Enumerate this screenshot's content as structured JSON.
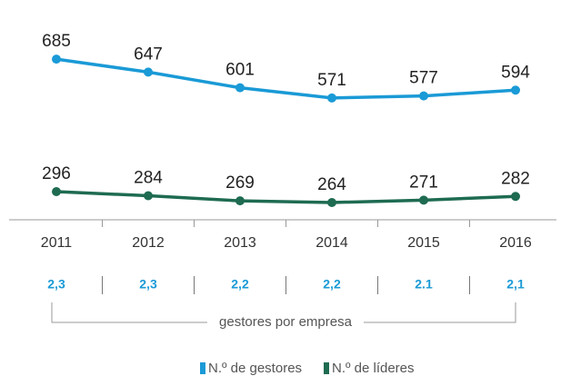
{
  "chart_data": {
    "type": "line",
    "categories": [
      "2011",
      "2012",
      "2013",
      "2014",
      "2015",
      "2016"
    ],
    "series": [
      {
        "name": "N.º de gestores",
        "color": "#1a9ad6",
        "values": [
          685,
          647,
          601,
          571,
          577,
          594
        ]
      },
      {
        "name": "N.º de líderes",
        "color": "#1e6b52",
        "values": [
          296,
          284,
          269,
          264,
          271,
          282
        ]
      }
    ],
    "ylim": [
      200,
      800
    ],
    "ratios": [
      "2,3",
      "2,3",
      "2,2",
      "2,2",
      "2.1",
      "2,1"
    ],
    "ratio_caption": "gestores por empresa",
    "legend": "bottom"
  }
}
